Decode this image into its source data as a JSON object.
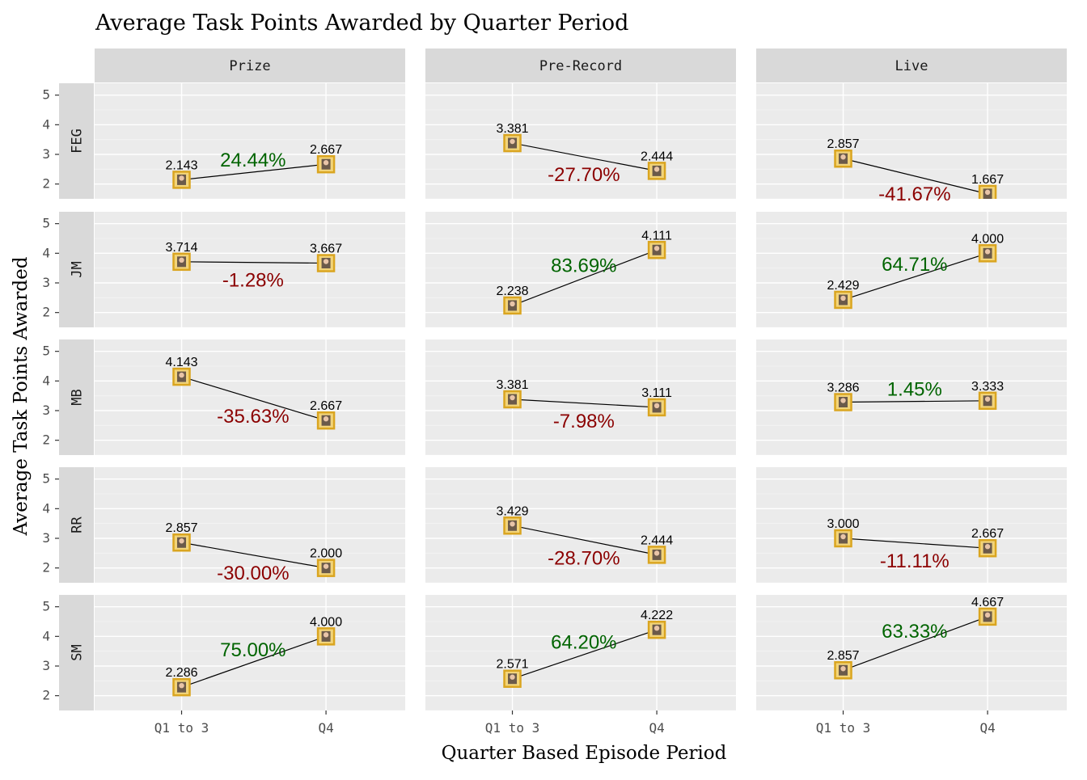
{
  "chart_data": {
    "type": "line",
    "title": "Average Task Points Awarded by Quarter Period",
    "xlabel": "Quarter Based Episode Period",
    "ylabel": "Average Task Points Awarded",
    "categories": [
      "Q1 to 3",
      "Q4"
    ],
    "columns": [
      "Prize",
      "Pre-Record",
      "Live"
    ],
    "rows": [
      "FEG",
      "JM",
      "MB",
      "RR",
      "SM"
    ],
    "ylim": [
      1.5,
      5.4
    ],
    "yticks": [
      "2",
      "3",
      "4",
      "5"
    ],
    "grid": true,
    "positive_color": "#006400",
    "negative_color": "#8b0000",
    "panel_bg": "#ebebeb",
    "strip_bg": "#d9d9d9",
    "point_color": "#daa520",
    "panels": [
      {
        "row": "FEG",
        "column": "Prize",
        "values": [
          2.143,
          2.667
        ],
        "labels": [
          "2.143",
          "2.667"
        ],
        "change": "24.44%"
      },
      {
        "row": "FEG",
        "column": "Pre-Record",
        "values": [
          3.381,
          2.444
        ],
        "labels": [
          "3.381",
          "2.444"
        ],
        "change": "-27.70%"
      },
      {
        "row": "FEG",
        "column": "Live",
        "values": [
          2.857,
          1.667
        ],
        "labels": [
          "2.857",
          "1.667"
        ],
        "change": "-41.67%"
      },
      {
        "row": "JM",
        "column": "Prize",
        "values": [
          3.714,
          3.667
        ],
        "labels": [
          "3.714",
          "3.667"
        ],
        "change": "-1.28%"
      },
      {
        "row": "JM",
        "column": "Pre-Record",
        "values": [
          2.238,
          4.111
        ],
        "labels": [
          "2.238",
          "4.111"
        ],
        "change": "83.69%"
      },
      {
        "row": "JM",
        "column": "Live",
        "values": [
          2.429,
          4.0
        ],
        "labels": [
          "2.429",
          "4.000"
        ],
        "change": "64.71%"
      },
      {
        "row": "MB",
        "column": "Prize",
        "values": [
          4.143,
          2.667
        ],
        "labels": [
          "4.143",
          "2.667"
        ],
        "change": "-35.63%"
      },
      {
        "row": "MB",
        "column": "Pre-Record",
        "values": [
          3.381,
          3.111
        ],
        "labels": [
          "3.381",
          "3.111"
        ],
        "change": "-7.98%"
      },
      {
        "row": "MB",
        "column": "Live",
        "values": [
          3.286,
          3.333
        ],
        "labels": [
          "3.286",
          "3.333"
        ],
        "change": "1.45%"
      },
      {
        "row": "RR",
        "column": "Prize",
        "values": [
          2.857,
          2.0
        ],
        "labels": [
          "2.857",
          "2.000"
        ],
        "change": "-30.00%"
      },
      {
        "row": "RR",
        "column": "Pre-Record",
        "values": [
          3.429,
          2.444
        ],
        "labels": [
          "3.429",
          "2.444"
        ],
        "change": "-28.70%"
      },
      {
        "row": "RR",
        "column": "Live",
        "values": [
          3.0,
          2.667
        ],
        "labels": [
          "3.000",
          "2.667"
        ],
        "change": "-11.11%"
      },
      {
        "row": "SM",
        "column": "Prize",
        "values": [
          2.286,
          4.0
        ],
        "labels": [
          "2.286",
          "4.000"
        ],
        "change": "75.00%"
      },
      {
        "row": "SM",
        "column": "Pre-Record",
        "values": [
          2.571,
          4.222
        ],
        "labels": [
          "2.571",
          "4.222"
        ],
        "change": "64.20%"
      },
      {
        "row": "SM",
        "column": "Live",
        "values": [
          2.857,
          4.667
        ],
        "labels": [
          "2.857",
          "4.667"
        ],
        "change": "63.33%"
      }
    ]
  }
}
